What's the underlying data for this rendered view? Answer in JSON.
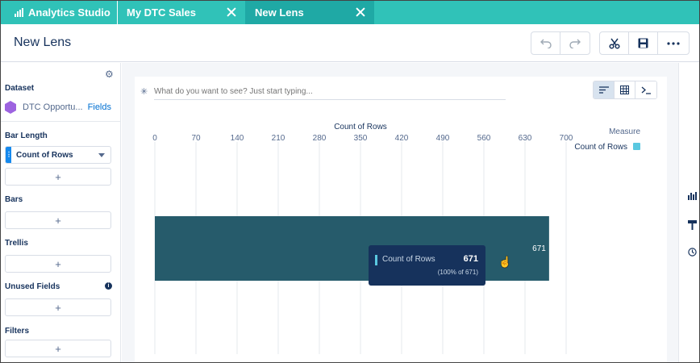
{
  "tabs": {
    "app": "Analytics Studio",
    "tab1": "My DTC Sales",
    "tab2": "New Lens"
  },
  "header": {
    "title": "New Lens"
  },
  "left_panel": {
    "dataset_label": "Dataset",
    "dataset_name": "DTC Opportu...",
    "fields_link": "Fields",
    "bar_length_label": "Bar Length",
    "bar_length_value": "Count of Rows",
    "bars_label": "Bars",
    "trellis_label": "Trellis",
    "unused_fields_label": "Unused Fields",
    "filters_label": "Filters",
    "add_symbol": "+",
    "info_symbol": "i"
  },
  "query": {
    "placeholder": "What do you want to see? Just start typing..."
  },
  "chart_data": {
    "type": "bar",
    "orientation": "horizontal",
    "title": "Count of Rows",
    "xlabel": "Count of Rows",
    "ylabel": "",
    "x_ticks": [
      "0",
      "70",
      "140",
      "210",
      "280",
      "350",
      "420",
      "490",
      "560",
      "630",
      "700"
    ],
    "xlim": [
      0,
      700
    ],
    "categories": [
      ""
    ],
    "values": [
      671
    ],
    "data_labels": [
      "671"
    ],
    "legend_title": "Measure",
    "legend": [
      {
        "name": "Count of Rows",
        "color": "#5ac8e0"
      }
    ],
    "legend_placement": "top-right",
    "grid": true,
    "bar_color": "#265b6b"
  },
  "tooltip": {
    "name": "Count of Rows",
    "value": "671",
    "sub": "(100% of 671)"
  },
  "colors": {
    "tab_bar": "#30c2b8",
    "active_tab": "#1fa9a5",
    "bar": "#265b6b",
    "tooltip_bg": "#16325c"
  }
}
